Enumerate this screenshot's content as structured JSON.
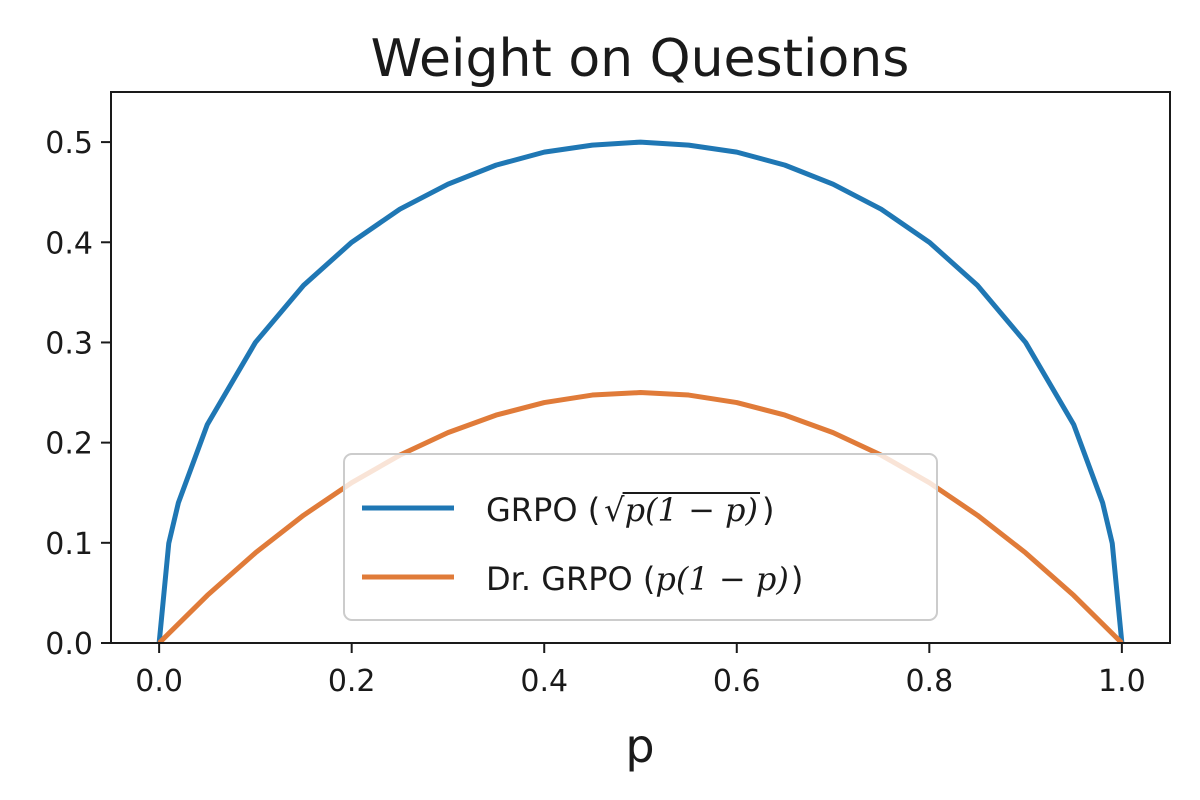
{
  "chart_data": {
    "type": "line",
    "title": "Weight on Questions",
    "xlabel": "p",
    "ylabel": "",
    "xlim": [
      -0.05,
      1.05
    ],
    "ylim": [
      0.0,
      0.55
    ],
    "xticks": [
      "0.0",
      "0.2",
      "0.4",
      "0.6",
      "0.8",
      "1.0"
    ],
    "yticks": [
      "0.0",
      "0.1",
      "0.2",
      "0.3",
      "0.4",
      "0.5"
    ],
    "grid": false,
    "legend_position": "lower-center",
    "series": [
      {
        "name": "GRPO (√p(1 − p))",
        "legend": {
          "prefix": "GRPO (",
          "radicand": "p(1 − p)",
          "suffix": ")"
        },
        "color": "#1f77b4",
        "x": [
          0.0,
          0.01,
          0.02,
          0.05,
          0.1,
          0.15,
          0.2,
          0.25,
          0.3,
          0.35,
          0.4,
          0.45,
          0.5,
          0.55,
          0.6,
          0.65,
          0.7,
          0.75,
          0.8,
          0.85,
          0.9,
          0.95,
          0.98,
          0.99,
          1.0
        ],
        "y": [
          0.0,
          0.0995,
          0.14,
          0.218,
          0.3,
          0.357,
          0.4,
          0.433,
          0.458,
          0.477,
          0.49,
          0.497,
          0.5,
          0.497,
          0.49,
          0.477,
          0.458,
          0.433,
          0.4,
          0.357,
          0.3,
          0.218,
          0.14,
          0.0995,
          0.0
        ]
      },
      {
        "name": "Dr. GRPO (p(1 − p))",
        "legend": {
          "prefix": "Dr. GRPO (",
          "math": "p(1 − p)",
          "suffix": ")"
        },
        "color": "#e07b39",
        "x": [
          0.0,
          0.05,
          0.1,
          0.15,
          0.2,
          0.25,
          0.3,
          0.35,
          0.4,
          0.45,
          0.5,
          0.55,
          0.6,
          0.65,
          0.7,
          0.75,
          0.8,
          0.85,
          0.9,
          0.95,
          1.0
        ],
        "y": [
          0.0,
          0.0475,
          0.09,
          0.1275,
          0.16,
          0.1875,
          0.21,
          0.2275,
          0.24,
          0.2475,
          0.25,
          0.2475,
          0.24,
          0.2275,
          0.21,
          0.1875,
          0.16,
          0.1275,
          0.09,
          0.0475,
          0.0
        ]
      }
    ]
  }
}
